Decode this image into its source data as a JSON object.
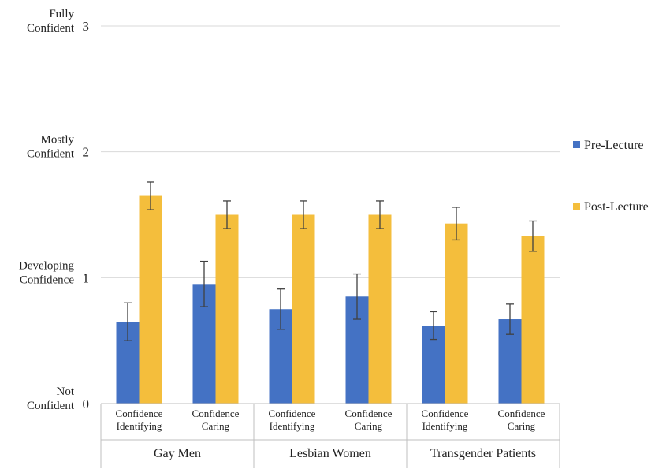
{
  "chart_data": {
    "type": "bar",
    "title": "",
    "xlabel": "",
    "ylabel": "",
    "ylim": [
      0,
      3
    ],
    "y_ticks": [
      {
        "value": 0,
        "label": "0",
        "desc": [
          "Not",
          "Confident"
        ]
      },
      {
        "value": 1,
        "label": "1",
        "desc": [
          "Developing",
          "Confidence"
        ]
      },
      {
        "value": 2,
        "label": "2",
        "desc": [
          "Mostly",
          "Confident"
        ]
      },
      {
        "value": 3,
        "label": "3",
        "desc": [
          "Fully",
          "Confident"
        ]
      }
    ],
    "groups": [
      {
        "label": "Gay Men",
        "categories": [
          [
            "Confidence",
            "Identifying"
          ],
          [
            "Confidence",
            "Caring"
          ]
        ]
      },
      {
        "label": "Lesbian Women",
        "categories": [
          [
            "Confidence",
            "Identifying"
          ],
          [
            "Confidence",
            "Caring"
          ]
        ]
      },
      {
        "label": "Transgender Patients",
        "categories": [
          [
            "Confidence",
            "Identifying"
          ],
          [
            "Confidence",
            "Caring"
          ]
        ]
      }
    ],
    "series": [
      {
        "name": "Pre-Lecture",
        "color": "#4472C4",
        "values": [
          0.65,
          0.95,
          0.75,
          0.85,
          0.62,
          0.67
        ],
        "errors": [
          0.15,
          0.18,
          0.16,
          0.18,
          0.11,
          0.12
        ]
      },
      {
        "name": "Post-Lecture",
        "color": "#F4BE3C",
        "values": [
          1.65,
          1.5,
          1.5,
          1.5,
          1.43,
          1.33
        ],
        "errors": [
          0.11,
          0.11,
          0.11,
          0.11,
          0.13,
          0.12
        ]
      }
    ],
    "grid": true,
    "legend_position": "right"
  }
}
